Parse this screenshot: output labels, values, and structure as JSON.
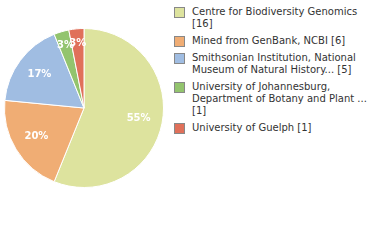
{
  "chart_data": {
    "type": "pie",
    "categories": [
      "Centre for Biodiversity Genomics [16]",
      "Mined from GenBank, NCBI [6]",
      "Smithsonian Institution, National Museum of Natural History... [5]",
      "University of Johannesburg, Department of Botany and Plant ... [1]",
      "University of Guelph [1]"
    ],
    "values": [
      55,
      20,
      17,
      3,
      3
    ],
    "value_labels": [
      "55%",
      "20%",
      "17%",
      "3%",
      "3%"
    ],
    "colors": [
      "#dde39e",
      "#f0ad74",
      "#a0bde2",
      "#93c46e",
      "#e0705a"
    ],
    "data_labels": true,
    "legend": "right"
  }
}
